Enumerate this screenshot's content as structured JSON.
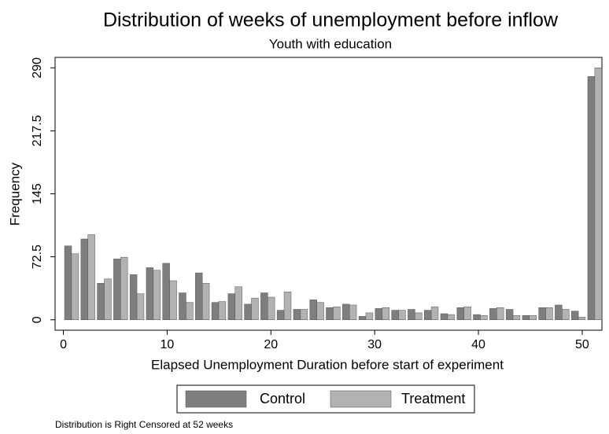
{
  "chart_data": {
    "type": "histogram",
    "title": "Distribution of weeks of unemployment before inflow",
    "subtitle": "Youth with education",
    "x_label": "Elapsed Unemployment Duration before start of experiment",
    "y_label": "Frequency",
    "note": "Distribution is Right Censored at 52 weeks",
    "bins": [
      0,
      1.58,
      3.15,
      4.73,
      6.3,
      7.88,
      9.45,
      11.03,
      12.61,
      14.18,
      15.76,
      17.33,
      18.91,
      20.48,
      22.06,
      23.64,
      25.21,
      26.79,
      28.36,
      29.94,
      31.52,
      33.09,
      34.67,
      36.24,
      37.82,
      39.39,
      40.97,
      42.55,
      44.12,
      45.7,
      47.27,
      48.85,
      50.42,
      52
    ],
    "series": [
      {
        "name": "Control",
        "color": "#7e7e7e",
        "values": [
          85,
          93,
          42,
          70,
          52,
          60,
          65,
          31,
          54,
          20,
          30,
          18,
          31,
          11,
          12,
          23,
          14,
          18,
          4,
          13,
          11,
          12,
          11,
          7,
          14,
          6,
          13,
          12,
          5,
          14,
          17,
          10,
          280
        ]
      },
      {
        "name": "Treatment",
        "color": "#b2b2b2",
        "values": [
          76,
          98,
          47,
          72,
          30,
          57,
          45,
          20,
          42,
          21,
          38,
          25,
          26,
          32,
          12,
          20,
          15,
          17,
          8,
          14,
          11,
          8,
          15,
          6,
          15,
          5,
          14,
          5,
          5,
          14,
          12,
          3,
          290
        ]
      }
    ],
    "xlim": [
      -0.8,
      51.9
    ],
    "xticks": [
      0,
      10,
      20,
      30,
      40,
      50
    ],
    "ylim": [
      -12,
      302
    ],
    "yticks": [
      0,
      72.5,
      145,
      217.5,
      290
    ],
    "grid": false,
    "legend_position": "bottom"
  }
}
